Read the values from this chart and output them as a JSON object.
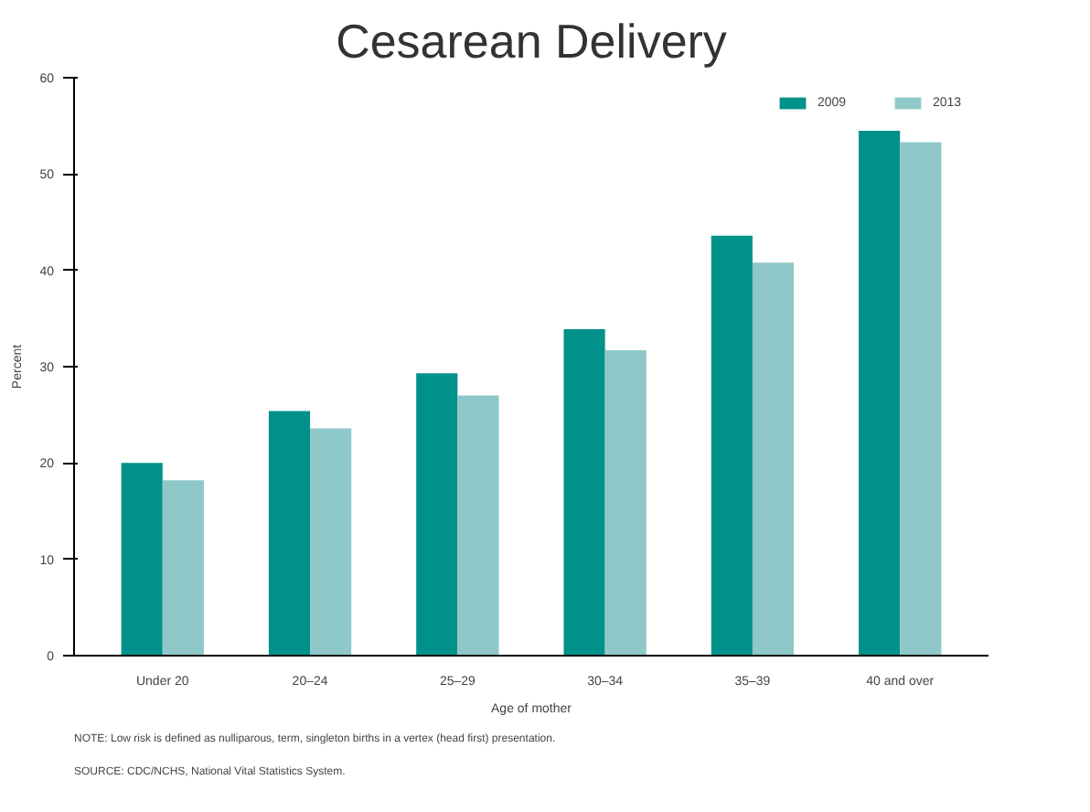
{
  "chart_data": {
    "type": "bar",
    "title": "Cesarean Delivery",
    "xlabel": "Age of mother",
    "ylabel": "Percent",
    "categories": [
      "Under 20",
      "20–24",
      "25–29",
      "30–34",
      "35–39",
      "40 and over"
    ],
    "series": [
      {
        "name": "2009",
        "color": "#00918a",
        "values": [
          20.0,
          25.4,
          29.3,
          33.9,
          43.6,
          54.5
        ]
      },
      {
        "name": "2013",
        "color": "#8fc8c8",
        "values": [
          18.2,
          23.6,
          27.0,
          31.7,
          40.8,
          53.3
        ]
      }
    ],
    "ylim": [
      0,
      60
    ],
    "yticks": [
      0,
      10,
      20,
      30,
      40,
      50,
      60
    ],
    "grid": false,
    "legend": "top right",
    "annotations": [
      "NOTE: Low risk is defined as nulliparous, term, singleton births in a vertex (head first) presentation.",
      "SOURCE: CDC/NCHS, National Vital Statistics System."
    ]
  }
}
